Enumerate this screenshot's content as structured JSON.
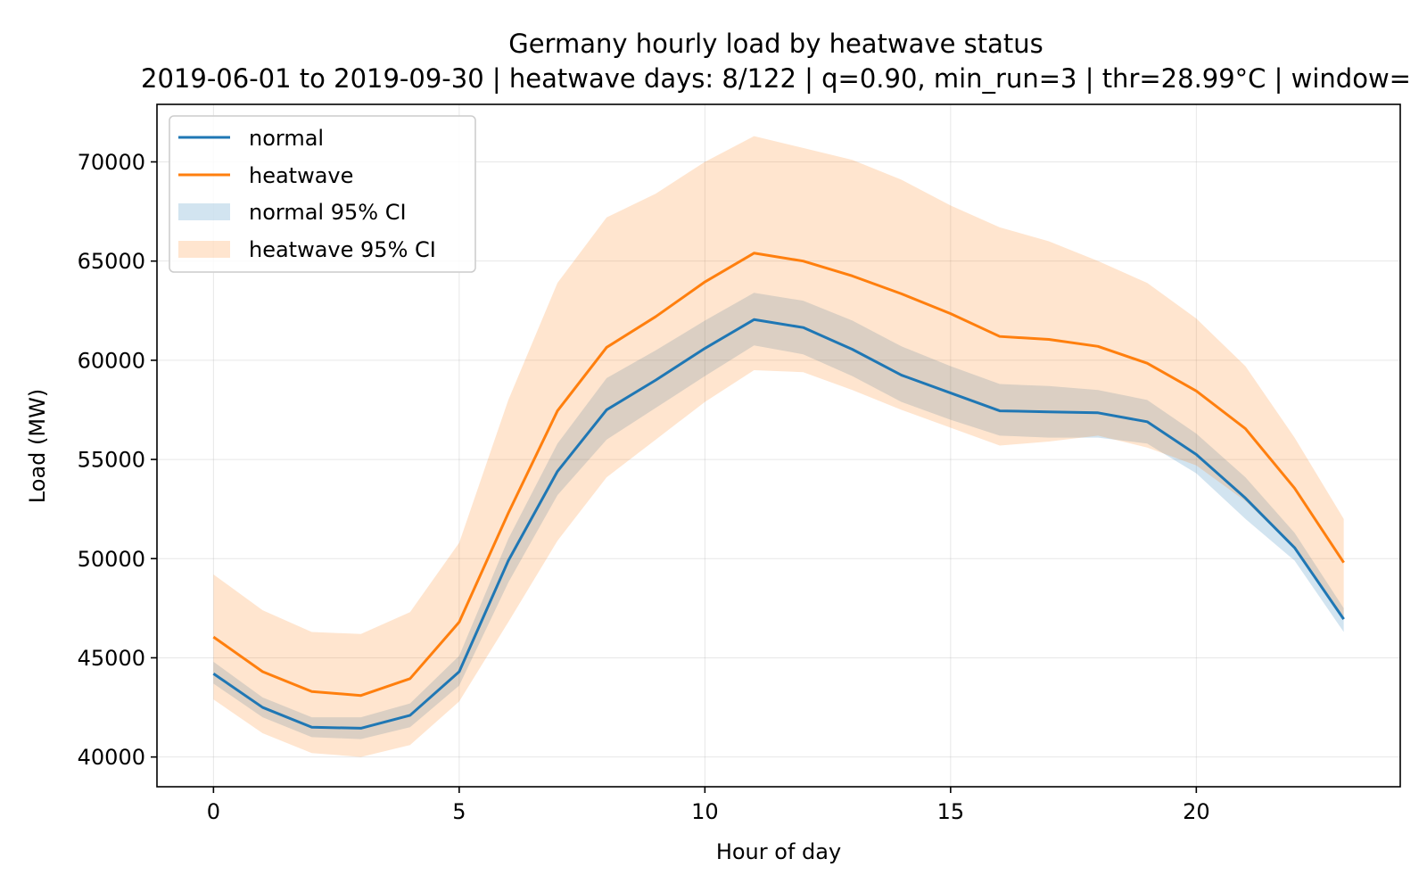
{
  "chart_data": {
    "type": "line",
    "title": "Germany hourly load by heatwave status",
    "subtitle": "2019-06-01 to 2019-09-30  |  heatwave days: 8/122  |  q=0.90, min_run=3  |  thr=28.99°C  |  window=",
    "xlabel": "Hour of day",
    "ylabel": "Load (MW)",
    "xlim": [
      -1.15,
      24.15
    ],
    "ylim": [
      38500,
      72900
    ],
    "xticks": [
      0,
      5,
      10,
      15,
      20
    ],
    "yticks": [
      40000,
      45000,
      50000,
      55000,
      60000,
      65000,
      70000
    ],
    "grid": true,
    "legend_position": "upper left",
    "x": [
      0,
      1,
      2,
      3,
      4,
      5,
      6,
      7,
      8,
      9,
      10,
      11,
      12,
      13,
      14,
      15,
      16,
      17,
      18,
      19,
      20,
      21,
      22,
      23
    ],
    "series": [
      {
        "name": "normal",
        "color": "#1f77b4",
        "values": [
          44200,
          42500,
          41500,
          41450,
          42100,
          44300,
          49900,
          54400,
          57500,
          59000,
          60600,
          62050,
          61650,
          60550,
          59250,
          58350,
          57450,
          57400,
          57350,
          56900,
          55250,
          53050,
          50550,
          46950
        ]
      },
      {
        "name": "heatwave",
        "color": "#ff7f0e",
        "values": [
          46050,
          44300,
          43300,
          43100,
          43950,
          46800,
          52300,
          57450,
          60650,
          62200,
          63950,
          65400,
          65000,
          64250,
          63350,
          62350,
          61200,
          61050,
          60700,
          59850,
          58450,
          56550,
          53550,
          49800
        ]
      }
    ],
    "bands": [
      {
        "name": "normal 95% CI",
        "color": "#1f77b4",
        "opacity": 0.2,
        "lower": [
          43700,
          42000,
          41000,
          40900,
          41500,
          43600,
          48800,
          53200,
          56000,
          57600,
          59200,
          60750,
          60300,
          59200,
          57900,
          57000,
          56200,
          56100,
          56100,
          55800,
          54300,
          52000,
          49900,
          46300
        ],
        "upper": [
          44800,
          43000,
          42000,
          42000,
          42700,
          45100,
          51000,
          55800,
          59100,
          60500,
          62000,
          63400,
          63000,
          62000,
          60700,
          59700,
          58800,
          58700,
          58500,
          58000,
          56300,
          54100,
          51300,
          47500
        ]
      },
      {
        "name": "heatwave 95% CI",
        "color": "#ff7f0e",
        "opacity": 0.2,
        "lower": [
          42900,
          41200,
          40200,
          40000,
          40600,
          42800,
          46800,
          50900,
          54100,
          56000,
          57900,
          59500,
          59400,
          58500,
          57500,
          56600,
          55700,
          55900,
          56200,
          55600,
          54700,
          52900,
          50500,
          47000
        ],
        "upper": [
          49200,
          47400,
          46300,
          46200,
          47300,
          50800,
          58000,
          63900,
          67200,
          68400,
          70000,
          71300,
          70700,
          70100,
          69100,
          67800,
          66700,
          66000,
          65000,
          63900,
          62100,
          59700,
          56100,
          52000
        ]
      }
    ]
  }
}
